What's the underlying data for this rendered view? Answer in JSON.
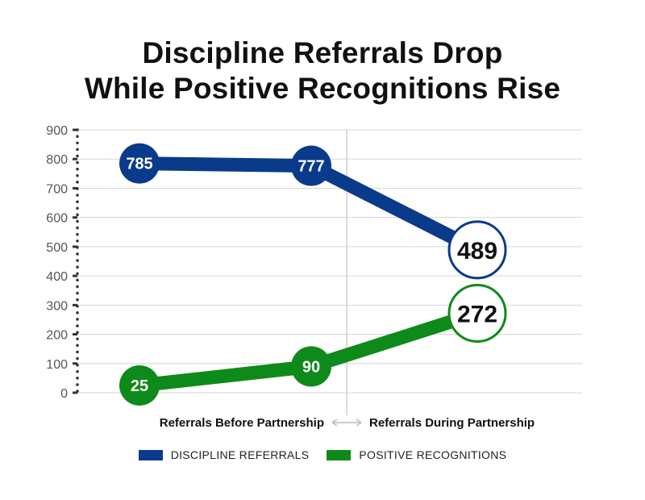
{
  "title_line1": "Discipline Referrals Drop",
  "title_line2": "While Positive Recognitions Rise",
  "chart_data": {
    "type": "line",
    "title": "Discipline Referrals Drop While Positive Recognitions Rise",
    "ylim": [
      0,
      900
    ],
    "yticks": [
      0,
      100,
      200,
      300,
      400,
      500,
      600,
      700,
      800,
      900
    ],
    "groups": [
      "Referrals Before Partnership",
      "Referrals During Partnership"
    ],
    "x_points": 3,
    "grid": true,
    "legend_position": "bottom",
    "series": [
      {
        "name": "DISCIPLINE REFERRALS",
        "color": "#0a3a8a",
        "values": [
          785,
          777,
          489
        ],
        "labels": [
          "785",
          "777",
          "489"
        ]
      },
      {
        "name": "POSITIVE RECOGNITIONS",
        "color": "#0e8a1a",
        "values": [
          25,
          90,
          272
        ],
        "labels": [
          "25",
          "90",
          "272"
        ]
      }
    ]
  }
}
